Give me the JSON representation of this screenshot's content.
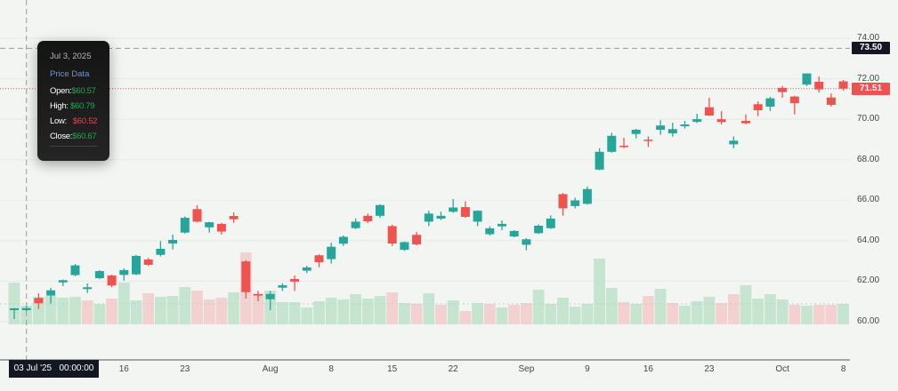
{
  "chart_data": {
    "type": "candlestick",
    "y_axis": {
      "ticks": [
        "74.00",
        "72.00",
        "70.00",
        "68.00",
        "66.00",
        "64.00",
        "62.00",
        "60.00"
      ],
      "range": [
        60,
        74
      ]
    },
    "x_axis": {
      "ticks": [
        {
          "label": "16",
          "date": "2025-07-16"
        },
        {
          "label": "23",
          "date": "2025-07-23"
        },
        {
          "label": "Aug",
          "date": "2025-08-01"
        },
        {
          "label": "8",
          "date": "2025-08-08"
        },
        {
          "label": "15",
          "date": "2025-08-15"
        },
        {
          "label": "22",
          "date": "2025-08-22"
        },
        {
          "label": "Sep",
          "date": "2025-09-02"
        },
        {
          "label": "9",
          "date": "2025-09-09"
        },
        {
          "label": "16",
          "date": "2025-09-16"
        },
        {
          "label": "23",
          "date": "2025-09-23"
        },
        {
          "label": "Oct",
          "date": "2025-10-01"
        },
        {
          "label": "8",
          "date": "2025-10-08"
        }
      ]
    },
    "colors": {
      "up": "#26a69a",
      "down": "#ef5350",
      "volume_up": "#c5e5d1",
      "volume_down": "#f3d1d1"
    },
    "grid": true,
    "crosshair_price_label": "73.50",
    "crosshair_price": 73.5,
    "last_price_label": "71.51",
    "last_price": 71.51,
    "crosshair_date_label": "03 Jul '25   00:00:00",
    "candles": [
      {
        "date": "2025-07-02",
        "o": 60.57,
        "h": 60.68,
        "l": 60.13,
        "c": 60.66,
        "v": 47,
        "vd": "up"
      },
      {
        "date": "2025-07-03",
        "o": 60.57,
        "h": 60.79,
        "l": 60.52,
        "c": 60.67,
        "v": 21,
        "vd": "up"
      },
      {
        "date": "2025-07-07",
        "o": 61.17,
        "h": 61.4,
        "l": 60.63,
        "c": 60.91,
        "v": 31,
        "vd": "up"
      },
      {
        "date": "2025-07-08",
        "o": 61.29,
        "h": 61.67,
        "l": 60.89,
        "c": 61.55,
        "v": 32,
        "vd": "up"
      },
      {
        "date": "2025-07-09",
        "o": 61.94,
        "h": 62.08,
        "l": 61.76,
        "c": 62.05,
        "v": 30,
        "vd": "up"
      },
      {
        "date": "2025-07-10",
        "o": 62.3,
        "h": 62.85,
        "l": 62.25,
        "c": 62.78,
        "v": 31,
        "vd": "up"
      },
      {
        "date": "2025-07-11",
        "o": 61.61,
        "h": 61.89,
        "l": 61.42,
        "c": 61.7,
        "v": 27,
        "vd": "down"
      },
      {
        "date": "2025-07-14",
        "o": 62.15,
        "h": 62.55,
        "l": 62.1,
        "c": 62.5,
        "v": 23,
        "vd": "up"
      },
      {
        "date": "2025-07-15",
        "o": 62.28,
        "h": 62.32,
        "l": 61.7,
        "c": 61.79,
        "v": 29,
        "vd": "down"
      },
      {
        "date": "2025-07-16",
        "o": 62.31,
        "h": 62.63,
        "l": 62.03,
        "c": 62.55,
        "v": 47,
        "vd": "up"
      },
      {
        "date": "2025-07-17",
        "o": 62.34,
        "h": 63.3,
        "l": 62.3,
        "c": 63.25,
        "v": 27,
        "vd": "up"
      },
      {
        "date": "2025-07-18",
        "o": 63.07,
        "h": 63.15,
        "l": 62.75,
        "c": 62.81,
        "v": 35,
        "vd": "down"
      },
      {
        "date": "2025-07-21",
        "o": 63.3,
        "h": 63.98,
        "l": 63.22,
        "c": 63.6,
        "v": 31,
        "vd": "up"
      },
      {
        "date": "2025-07-22",
        "o": 63.86,
        "h": 64.3,
        "l": 63.57,
        "c": 64.04,
        "v": 32,
        "vd": "up"
      },
      {
        "date": "2025-07-23",
        "o": 64.4,
        "h": 65.2,
        "l": 64.35,
        "c": 65.13,
        "v": 42,
        "vd": "up"
      },
      {
        "date": "2025-07-24",
        "o": 65.56,
        "h": 65.75,
        "l": 64.9,
        "c": 64.94,
        "v": 38,
        "vd": "down"
      },
      {
        "date": "2025-07-25",
        "o": 64.66,
        "h": 64.93,
        "l": 64.4,
        "c": 64.91,
        "v": 28,
        "vd": "down"
      },
      {
        "date": "2025-07-28",
        "o": 64.83,
        "h": 64.88,
        "l": 64.3,
        "c": 64.45,
        "v": 30,
        "vd": "down"
      },
      {
        "date": "2025-07-29",
        "o": 65.22,
        "h": 65.4,
        "l": 64.88,
        "c": 65.06,
        "v": 36,
        "vd": "up"
      },
      {
        "date": "2025-07-30",
        "o": 62.98,
        "h": 63.04,
        "l": 61.14,
        "c": 61.46,
        "v": 81,
        "vd": "down"
      },
      {
        "date": "2025-07-31",
        "o": 61.36,
        "h": 61.52,
        "l": 61.01,
        "c": 61.29,
        "v": 35,
        "vd": "down"
      },
      {
        "date": "2025-08-01",
        "o": 61.11,
        "h": 61.51,
        "l": 60.57,
        "c": 61.37,
        "v": 38,
        "vd": "up"
      },
      {
        "date": "2025-08-04",
        "o": 61.68,
        "h": 61.9,
        "l": 61.52,
        "c": 61.8,
        "v": 25,
        "vd": "up"
      },
      {
        "date": "2025-08-05",
        "o": 62.11,
        "h": 62.28,
        "l": 61.52,
        "c": 61.98,
        "v": 25,
        "vd": "up"
      },
      {
        "date": "2025-08-06",
        "o": 62.52,
        "h": 62.76,
        "l": 62.4,
        "c": 62.68,
        "v": 19,
        "vd": "up"
      },
      {
        "date": "2025-08-07",
        "o": 63.28,
        "h": 63.33,
        "l": 62.69,
        "c": 62.94,
        "v": 26,
        "vd": "up"
      },
      {
        "date": "2025-08-08",
        "o": 63.09,
        "h": 63.9,
        "l": 62.87,
        "c": 63.7,
        "v": 30,
        "vd": "up"
      },
      {
        "date": "2025-08-11",
        "o": 63.85,
        "h": 64.26,
        "l": 63.74,
        "c": 64.19,
        "v": 28,
        "vd": "up"
      },
      {
        "date": "2025-08-12",
        "o": 64.62,
        "h": 65.1,
        "l": 64.57,
        "c": 64.94,
        "v": 34,
        "vd": "up"
      },
      {
        "date": "2025-08-13",
        "o": 65.23,
        "h": 65.34,
        "l": 64.87,
        "c": 64.96,
        "v": 29,
        "vd": "up"
      },
      {
        "date": "2025-08-14",
        "o": 65.23,
        "h": 65.8,
        "l": 65.13,
        "c": 65.76,
        "v": 32,
        "vd": "up"
      },
      {
        "date": "2025-08-15",
        "o": 64.72,
        "h": 64.79,
        "l": 63.74,
        "c": 63.86,
        "v": 36,
        "vd": "down"
      },
      {
        "date": "2025-08-18",
        "o": 63.55,
        "h": 63.96,
        "l": 63.5,
        "c": 63.93,
        "v": 24,
        "vd": "up"
      },
      {
        "date": "2025-08-19",
        "o": 64.29,
        "h": 64.43,
        "l": 63.77,
        "c": 63.82,
        "v": 23,
        "vd": "down"
      },
      {
        "date": "2025-08-20",
        "o": 64.94,
        "h": 65.48,
        "l": 64.72,
        "c": 65.34,
        "v": 35,
        "vd": "up"
      },
      {
        "date": "2025-08-21",
        "o": 65.09,
        "h": 65.43,
        "l": 65.02,
        "c": 65.23,
        "v": 22,
        "vd": "down"
      },
      {
        "date": "2025-08-22",
        "o": 65.43,
        "h": 66.06,
        "l": 65.38,
        "c": 65.64,
        "v": 27,
        "vd": "up"
      },
      {
        "date": "2025-08-25",
        "o": 65.66,
        "h": 65.94,
        "l": 65.13,
        "c": 65.18,
        "v": 15,
        "vd": "down"
      },
      {
        "date": "2025-08-26",
        "o": 64.94,
        "h": 65.5,
        "l": 64.72,
        "c": 65.48,
        "v": 24,
        "vd": "up"
      },
      {
        "date": "2025-08-27",
        "o": 64.32,
        "h": 64.71,
        "l": 64.26,
        "c": 64.61,
        "v": 23,
        "vd": "down"
      },
      {
        "date": "2025-08-28",
        "o": 64.71,
        "h": 65.0,
        "l": 64.52,
        "c": 64.83,
        "v": 19,
        "vd": "up"
      },
      {
        "date": "2025-08-29",
        "o": 64.21,
        "h": 64.52,
        "l": 64.17,
        "c": 64.48,
        "v": 22,
        "vd": "down"
      },
      {
        "date": "2025-09-02",
        "o": 63.8,
        "h": 64.12,
        "l": 63.52,
        "c": 64.07,
        "v": 24,
        "vd": "down"
      },
      {
        "date": "2025-09-03",
        "o": 64.37,
        "h": 64.8,
        "l": 64.33,
        "c": 64.74,
        "v": 39,
        "vd": "up"
      },
      {
        "date": "2025-09-04",
        "o": 64.62,
        "h": 65.25,
        "l": 64.58,
        "c": 65.09,
        "v": 23,
        "vd": "up"
      },
      {
        "date": "2025-09-05",
        "o": 66.3,
        "h": 66.36,
        "l": 65.23,
        "c": 65.6,
        "v": 30,
        "vd": "up"
      },
      {
        "date": "2025-09-08",
        "o": 65.71,
        "h": 66.12,
        "l": 65.6,
        "c": 65.99,
        "v": 20,
        "vd": "up"
      },
      {
        "date": "2025-09-09",
        "o": 65.82,
        "h": 66.67,
        "l": 65.78,
        "c": 66.55,
        "v": 23,
        "vd": "up"
      },
      {
        "date": "2025-09-10",
        "o": 67.51,
        "h": 68.57,
        "l": 67.48,
        "c": 68.39,
        "v": 74,
        "vd": "up"
      },
      {
        "date": "2025-09-11",
        "o": 68.39,
        "h": 69.33,
        "l": 68.35,
        "c": 69.18,
        "v": 41,
        "vd": "up"
      },
      {
        "date": "2025-09-12",
        "o": 68.69,
        "h": 69.08,
        "l": 68.57,
        "c": 68.63,
        "v": 25,
        "vd": "down"
      },
      {
        "date": "2025-09-15",
        "o": 69.27,
        "h": 69.52,
        "l": 69.05,
        "c": 69.48,
        "v": 23,
        "vd": "up"
      },
      {
        "date": "2025-09-16",
        "o": 68.99,
        "h": 69.15,
        "l": 68.63,
        "c": 68.93,
        "v": 32,
        "vd": "down"
      },
      {
        "date": "2025-09-17",
        "o": 69.48,
        "h": 69.95,
        "l": 69.23,
        "c": 69.69,
        "v": 40,
        "vd": "up"
      },
      {
        "date": "2025-09-18",
        "o": 69.3,
        "h": 69.83,
        "l": 69.14,
        "c": 69.51,
        "v": 24,
        "vd": "down"
      },
      {
        "date": "2025-09-19",
        "o": 69.65,
        "h": 69.92,
        "l": 69.54,
        "c": 69.74,
        "v": 21,
        "vd": "up"
      },
      {
        "date": "2025-09-22",
        "o": 69.87,
        "h": 70.27,
        "l": 69.81,
        "c": 70.0,
        "v": 26,
        "vd": "up"
      },
      {
        "date": "2025-09-23",
        "o": 70.59,
        "h": 71.06,
        "l": 70.16,
        "c": 70.18,
        "v": 31,
        "vd": "up"
      },
      {
        "date": "2025-09-24",
        "o": 70.0,
        "h": 70.4,
        "l": 69.74,
        "c": 69.86,
        "v": 24,
        "vd": "down"
      },
      {
        "date": "2025-09-25",
        "o": 68.76,
        "h": 69.15,
        "l": 68.57,
        "c": 68.94,
        "v": 34,
        "vd": "down"
      },
      {
        "date": "2025-09-26",
        "o": 69.92,
        "h": 70.24,
        "l": 69.74,
        "c": 69.8,
        "v": 44,
        "vd": "up"
      },
      {
        "date": "2025-09-29",
        "o": 70.74,
        "h": 70.88,
        "l": 70.15,
        "c": 70.44,
        "v": 29,
        "vd": "up"
      },
      {
        "date": "2025-09-30",
        "o": 70.62,
        "h": 71.1,
        "l": 70.41,
        "c": 71.03,
        "v": 34,
        "vd": "up"
      },
      {
        "date": "2025-10-01",
        "o": 71.55,
        "h": 71.65,
        "l": 71.06,
        "c": 71.34,
        "v": 28,
        "vd": "up"
      },
      {
        "date": "2025-10-02",
        "o": 71.12,
        "h": 71.16,
        "l": 70.24,
        "c": 70.79,
        "v": 22,
        "vd": "down"
      },
      {
        "date": "2025-10-03",
        "o": 71.71,
        "h": 72.26,
        "l": 71.64,
        "c": 72.26,
        "v": 21,
        "vd": "up"
      },
      {
        "date": "2025-10-06",
        "o": 71.85,
        "h": 72.11,
        "l": 71.32,
        "c": 71.47,
        "v": 22,
        "vd": "down"
      },
      {
        "date": "2025-10-07",
        "o": 71.07,
        "h": 71.27,
        "l": 70.62,
        "c": 70.71,
        "v": 22,
        "vd": "down"
      },
      {
        "date": "2025-10-08",
        "o": 71.87,
        "h": 71.94,
        "l": 71.41,
        "c": 71.51,
        "v": 23,
        "vd": "up"
      }
    ]
  },
  "tooltip": {
    "date": "Jul 3, 2025",
    "title": "Price Data",
    "open_label": "Open:",
    "open_value": "$60.57",
    "high_label": "High:",
    "high_value": "$60.79",
    "low_label": "Low:",
    "low_value": "$60.52",
    "close_label": "Close:",
    "close_value": "$60.67"
  }
}
